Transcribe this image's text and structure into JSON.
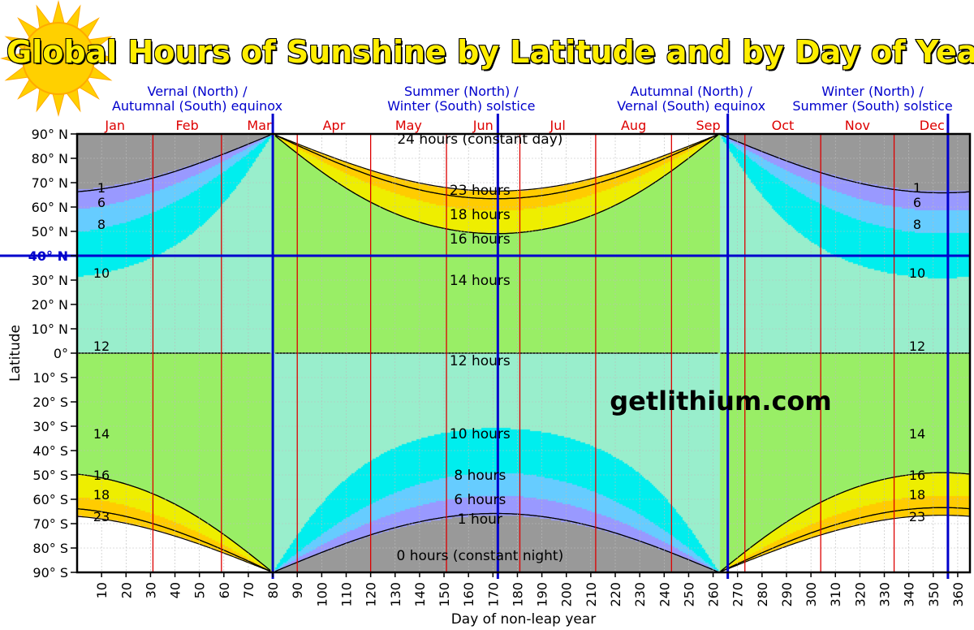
{
  "title": "Global Hours of Sunshine by Latitude and by Day of Year",
  "watermark": "getlithium.com",
  "colors": {
    "constant_day": "#ffffff",
    "constant_night": "#999999",
    "h23": "#ffc8c8",
    "h18": "#ffcc00",
    "h16": "#eeee00",
    "h14": "#99ee66",
    "h12": "#99eecc",
    "h10": "#00eeee",
    "h8": "#66ccff",
    "h6": "#9999ff",
    "month_line": "#dd0000",
    "event_line": "#0000cc",
    "contour": "#000000"
  },
  "chart_data": {
    "type": "heatmap",
    "title": "Global Hours of Sunshine by Latitude and by Day of Year",
    "xlabel": "Day of non-leap year",
    "ylabel": "Latitude",
    "xlim": [
      0,
      365
    ],
    "ylim": [
      -90,
      90
    ],
    "x_ticks": [
      10,
      20,
      30,
      40,
      50,
      60,
      70,
      80,
      90,
      100,
      110,
      120,
      130,
      140,
      150,
      160,
      170,
      180,
      190,
      200,
      210,
      220,
      230,
      240,
      250,
      260,
      270,
      280,
      290,
      300,
      310,
      320,
      330,
      340,
      350,
      360
    ],
    "y_ticks": [
      {
        "value": 90,
        "label": "90° N"
      },
      {
        "value": 80,
        "label": "80° N"
      },
      {
        "value": 70,
        "label": "70° N"
      },
      {
        "value": 60,
        "label": "60° N"
      },
      {
        "value": 50,
        "label": "50° N"
      },
      {
        "value": 40,
        "label": "40° N",
        "highlight": true
      },
      {
        "value": 30,
        "label": "30° N"
      },
      {
        "value": 20,
        "label": "20° N"
      },
      {
        "value": 10,
        "label": "10° N"
      },
      {
        "value": 0,
        "label": "0°"
      },
      {
        "value": -10,
        "label": "10° S"
      },
      {
        "value": -20,
        "label": "20° S"
      },
      {
        "value": -30,
        "label": "30° S"
      },
      {
        "value": -40,
        "label": "40° S"
      },
      {
        "value": -50,
        "label": "50° S"
      },
      {
        "value": -60,
        "label": "60° S"
      },
      {
        "value": -70,
        "label": "70° S"
      },
      {
        "value": -80,
        "label": "80° S"
      },
      {
        "value": -90,
        "label": "90° S"
      }
    ],
    "months": [
      {
        "name": "Jan",
        "start": 0
      },
      {
        "name": "Feb",
        "start": 31
      },
      {
        "name": "Mar",
        "start": 59
      },
      {
        "name": "Apr",
        "start": 90
      },
      {
        "name": "May",
        "start": 120
      },
      {
        "name": "Jun",
        "start": 151
      },
      {
        "name": "Jul",
        "start": 181
      },
      {
        "name": "Aug",
        "start": 212
      },
      {
        "name": "Sep",
        "start": 243
      },
      {
        "name": "Oct",
        "start": 273
      },
      {
        "name": "Nov",
        "start": 304
      },
      {
        "name": "Dec",
        "start": 334
      }
    ],
    "events": [
      {
        "day": 80,
        "line1": "Vernal (North) /",
        "line2": "Autumnal (South) equinox"
      },
      {
        "day": 172,
        "line1": "Summer (North) /",
        "line2": "Winter (South) solstice"
      },
      {
        "day": 266,
        "line1": "Autumnal (North) /",
        "line2": "Vernal (South) equinox"
      },
      {
        "day": 356,
        "line1": "Winter (North) /",
        "line2": "Summer (South) solstice"
      }
    ],
    "highlight_latitude": 40,
    "contour_levels_hours": [
      0,
      1,
      6,
      8,
      10,
      12,
      14,
      16,
      18,
      23,
      24
    ],
    "center_labels": [
      {
        "text": "24 hours (constant day)",
        "day": 172,
        "lat": 88
      },
      {
        "text": "23 hours",
        "day": 172,
        "lat": 67
      },
      {
        "text": "18 hours",
        "day": 172,
        "lat": 57
      },
      {
        "text": "16 hours",
        "day": 172,
        "lat": 47
      },
      {
        "text": "14 hours",
        "day": 172,
        "lat": 30
      },
      {
        "text": "12 hours",
        "day": 172,
        "lat": -3
      },
      {
        "text": "10 hours",
        "day": 172,
        "lat": -33
      },
      {
        "text": "8 hours",
        "day": 172,
        "lat": -50
      },
      {
        "text": "6 hours",
        "day": 172,
        "lat": -60
      },
      {
        "text": "1 hour",
        "day": 172,
        "lat": -68
      },
      {
        "text": "0 hours (constant night)",
        "day": 172,
        "lat": -83
      }
    ],
    "side_labels": [
      {
        "text": "1",
        "lat": 68
      },
      {
        "text": "6",
        "lat": 62
      },
      {
        "text": "8",
        "lat": 53
      },
      {
        "text": "10",
        "lat": 33
      },
      {
        "text": "12",
        "lat": 3
      },
      {
        "text": "14",
        "lat": -33
      },
      {
        "text": "16",
        "lat": -50
      },
      {
        "text": "18",
        "lat": -58
      },
      {
        "text": "23",
        "lat": -67
      }
    ]
  }
}
